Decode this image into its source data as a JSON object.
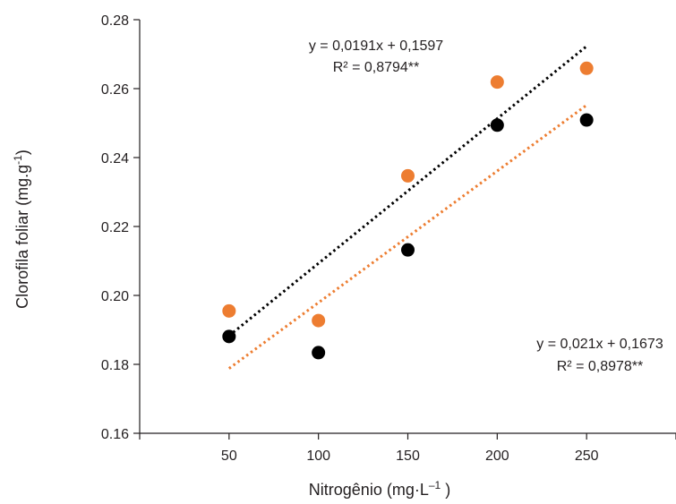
{
  "chart_data": {
    "type": "scatter",
    "title": "",
    "xlabel": "Nitrogênio (mg·L",
    "xlabel_sup": "–1",
    "xlabel_end": " )",
    "ylabel": "Clorofila foliar (mg.g",
    "ylabel_sup": "-1",
    "ylabel_end": ")",
    "x": [
      50,
      100,
      150,
      200,
      250
    ],
    "x_ticks": [
      "50",
      "100",
      "150",
      "200",
      "250"
    ],
    "xlim": [
      0,
      300
    ],
    "ylim": [
      0.16,
      0.28
    ],
    "y_ticks": [
      "0.16",
      "0.18",
      "0.20",
      "0.22",
      "0.24",
      "0.26",
      "0.28"
    ],
    "grid": false,
    "series": [
      {
        "values": [
          0.1955,
          0.1927,
          0.2347,
          0.2619,
          0.2659
        ],
        "color": "#ed7d31",
        "trendline": {
          "slope": 0.0191,
          "intercept": 0.1597,
          "x_start": 50,
          "x_end": 250
        },
        "equation": "y = 0,0191x + 0,1597",
        "r2": "R² = 0,8794**"
      },
      {
        "values": [
          0.1881,
          0.1834,
          0.2132,
          0.2494,
          0.2509
        ],
        "color": "#000000",
        "trendline": {
          "slope": 0.021,
          "intercept": 0.1673,
          "x_start": 50,
          "x_end": 250
        },
        "equation": "y = 0,021x + 0,1673",
        "r2": "R² = 0,8978**"
      }
    ]
  }
}
